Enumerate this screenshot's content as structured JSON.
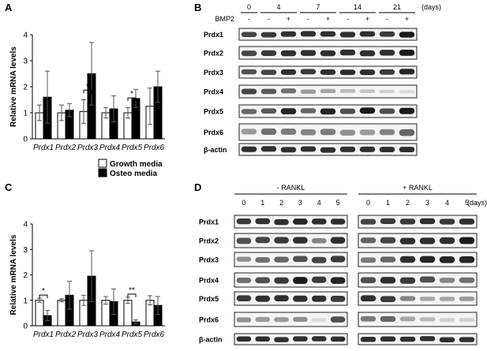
{
  "panels": {
    "A": "A",
    "B": "B",
    "C": "C",
    "D": "D"
  },
  "legend": {
    "growth": "Growth media",
    "osteo": "Osteo media",
    "growth_color": "#ffffff",
    "osteo_color": "#000000"
  },
  "chart_data": [
    {
      "panel": "A",
      "type": "bar",
      "ylabel": "Relative mRNA levels",
      "ylim": [
        0,
        4
      ],
      "yticks": [
        0,
        1,
        2,
        3,
        4
      ],
      "categories": [
        "Prdx1",
        "Prdx2",
        "Prdx3",
        "Prdx4",
        "Prdx5",
        "Prdx6"
      ],
      "series": [
        {
          "name": "Growth media",
          "values": [
            1.0,
            1.0,
            1.05,
            1.0,
            1.0,
            1.25
          ],
          "errors": [
            0.3,
            0.3,
            0.45,
            0.2,
            0.2,
            0.7
          ]
        },
        {
          "name": "Osteo media",
          "values": [
            1.6,
            1.1,
            2.5,
            1.15,
            1.55,
            2.0
          ],
          "errors": [
            1.0,
            0.25,
            1.2,
            0.5,
            0.35,
            0.6
          ]
        }
      ],
      "significance": [
        {
          "category": "Prdx3",
          "label": "*"
        },
        {
          "category": "Prdx5",
          "label": "*"
        }
      ]
    },
    {
      "panel": "C",
      "type": "bar",
      "ylabel": "Relative mRNA levels",
      "ylim": [
        0,
        4
      ],
      "yticks": [
        0,
        1,
        2,
        3,
        4
      ],
      "categories": [
        "Prdx1",
        "Prdx2",
        "Prdx3",
        "Prdx4",
        "Prdx5",
        "Prdx6"
      ],
      "series": [
        {
          "name": "Growth media",
          "values": [
            1.0,
            1.0,
            1.0,
            1.0,
            1.0,
            1.0
          ],
          "errors": [
            0.08,
            0.06,
            0.2,
            0.15,
            0.12,
            0.18
          ]
        },
        {
          "name": "Osteo media",
          "values": [
            0.4,
            1.2,
            1.95,
            0.95,
            0.15,
            0.8
          ],
          "errors": [
            0.2,
            0.55,
            1.0,
            0.5,
            0.08,
            0.35
          ]
        }
      ],
      "significance": [
        {
          "category": "Prdx1",
          "label": "*"
        },
        {
          "category": "Prdx5",
          "label": "**"
        }
      ]
    }
  ],
  "blotB": {
    "days_label": "(days)",
    "days": [
      "0",
      "4",
      "7",
      "14",
      "21"
    ],
    "treatment_label": "BMP2",
    "lanes": [
      "-",
      "-",
      "+",
      "-",
      "+",
      "-",
      "+",
      "-",
      "+"
    ],
    "rows": [
      "Prdx1",
      "Prdx2",
      "Prdx3",
      "Prdx4",
      "Prdx5",
      "Prdx6",
      "β-actin"
    ]
  },
  "blotD": {
    "minus_label": "- RANKL",
    "plus_label": "+ RANKL",
    "days": [
      "0",
      "1",
      "2",
      "3",
      "4",
      "5"
    ],
    "days_suffix": "(days)",
    "rows": [
      "Prdx1",
      "Prdx2",
      "Prdx3",
      "Prdx4",
      "Prdx5",
      "Prdx6",
      "β-actin"
    ]
  }
}
